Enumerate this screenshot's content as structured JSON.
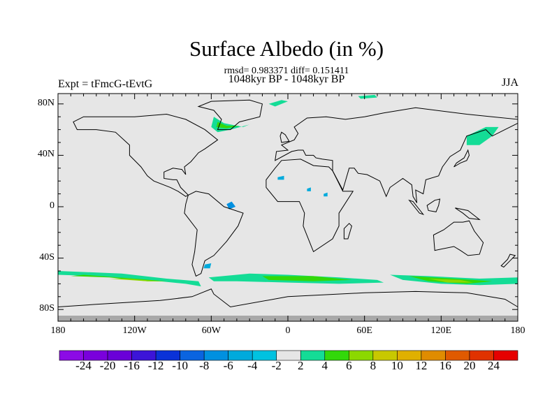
{
  "title": "Surface Albedo (in %)",
  "stats": "rmsd= 0.983371 diff= 0.151411",
  "period": "1048kyr BP - 1048kyr BP",
  "expt": "Expt = tFmcG-tEvtG",
  "season": "JJA",
  "lat_labels": [
    "80N",
    "40N",
    "0",
    "40S",
    "80S"
  ],
  "lat_values": [
    80,
    40,
    0,
    -40,
    -80
  ],
  "lon_labels": [
    "180",
    "120W",
    "60W",
    "0",
    "60E",
    "120E",
    "180"
  ],
  "lon_values": [
    -180,
    -120,
    -60,
    0,
    60,
    120,
    180
  ],
  "colorbar": {
    "labels": [
      "-24",
      "-20",
      "-16",
      "-12",
      "-10",
      "-8",
      "-6",
      "-4",
      "-2",
      "2",
      "4",
      "6",
      "8",
      "10",
      "12",
      "16",
      "20",
      "24"
    ],
    "colors": [
      "#8c0be6",
      "#7a00dc",
      "#6a00d8",
      "#3c14d8",
      "#0a32d8",
      "#0a64e0",
      "#0090e0",
      "#00aadc",
      "#00c2e0",
      "#e6e6e6",
      "#14dc96",
      "#32d80a",
      "#8cd800",
      "#c8c800",
      "#e0b000",
      "#e08c00",
      "#e05a00",
      "#e03200",
      "#e60000"
    ]
  },
  "map_background": "#e6e6e6"
}
